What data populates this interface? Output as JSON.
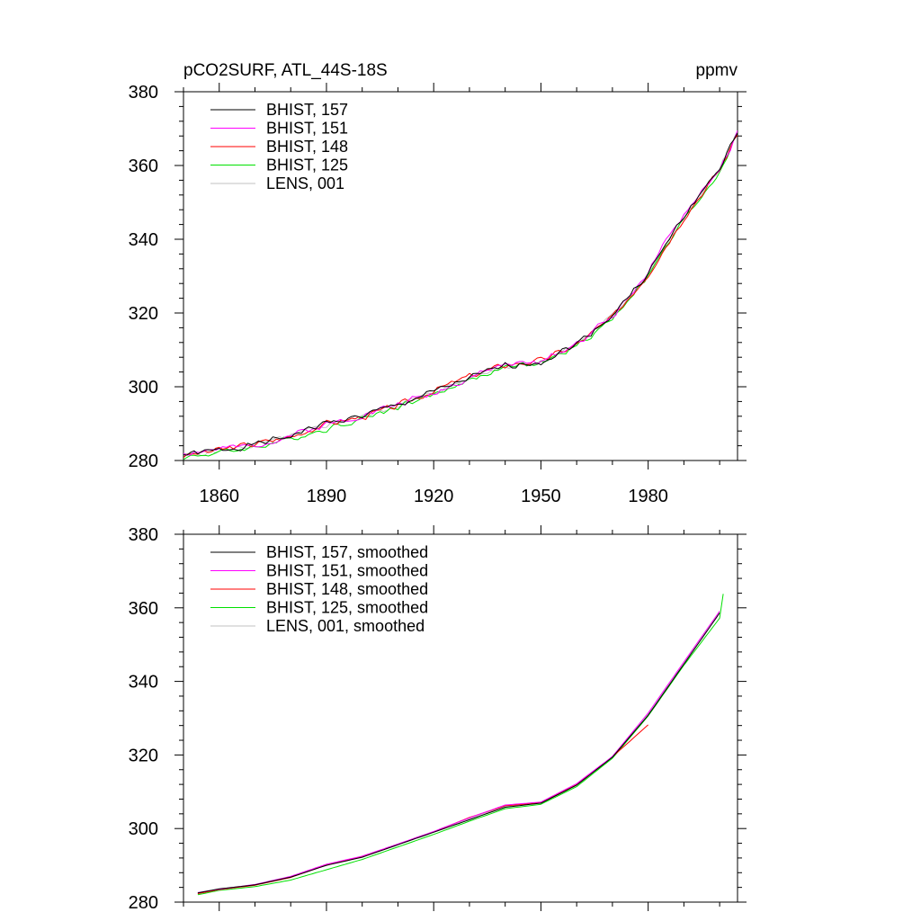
{
  "chart_data": [
    {
      "type": "line",
      "title_left": "pCO2SURF, ATL_44S-18S",
      "title_right": "ppmv",
      "xlim": [
        1850,
        2005
      ],
      "ylim": [
        280,
        380
      ],
      "xticks": [
        1860,
        1890,
        1920,
        1950,
        1980
      ],
      "yticks": [
        280,
        300,
        320,
        340,
        360,
        380
      ],
      "show_x_tick_labels": true,
      "legend_position": "top-left",
      "series": [
        {
          "name": "BHIST, 157",
          "color": "#000000",
          "noise": 1.1,
          "seed": 1,
          "x": [
            1850,
            1860,
            1870,
            1880,
            1890,
            1900,
            1910,
            1920,
            1930,
            1940,
            1950,
            1960,
            1970,
            1980,
            1990,
            2000,
            2005
          ],
          "y": [
            281.5,
            282.8,
            284.3,
            286.7,
            290.2,
            292.1,
            295.1,
            298.6,
            302.3,
            305.7,
            306.8,
            311.6,
            319.4,
            330.8,
            346.2,
            359.4,
            368.8
          ]
        },
        {
          "name": "BHIST, 151",
          "color": "#ff00ff",
          "noise": 1.1,
          "seed": 2,
          "x": [
            1850,
            1860,
            1870,
            1880,
            1890,
            1900,
            1910,
            1920,
            1930,
            1940,
            1950,
            1960,
            1970,
            1980,
            1990,
            2000,
            2005
          ],
          "y": [
            282.0,
            283.1,
            284.0,
            286.9,
            289.8,
            292.3,
            295.4,
            298.2,
            302.6,
            306.2,
            306.6,
            311.9,
            319.1,
            331.2,
            346.8,
            359.0,
            368.6
          ]
        },
        {
          "name": "BHIST, 148",
          "color": "#ff0000",
          "noise": 1.1,
          "seed": 3,
          "x": [
            1850,
            1860,
            1870,
            1880,
            1890,
            1900,
            1910,
            1920,
            1930,
            1940,
            1950,
            1960,
            1970,
            1980,
            1990,
            2000,
            2005
          ],
          "y": [
            281.2,
            282.9,
            284.6,
            286.4,
            290.0,
            291.8,
            294.9,
            298.9,
            302.9,
            305.9,
            307.1,
            311.4,
            318.8,
            330.5,
            345.9,
            358.8,
            368.7
          ]
        },
        {
          "name": "BHIST, 125",
          "color": "#00e000",
          "noise": 1.0,
          "seed": 4,
          "x": [
            1850,
            1860,
            1870,
            1880,
            1890,
            1900,
            1910,
            1920,
            1930,
            1940,
            1950,
            1960,
            1970,
            1980,
            1990,
            2000,
            2005
          ],
          "y": [
            280.8,
            282.2,
            283.6,
            285.9,
            288.6,
            291.4,
            294.6,
            297.9,
            301.9,
            305.2,
            306.3,
            310.9,
            318.5,
            330.2,
            345.3,
            358.3,
            368.9
          ]
        },
        {
          "name": "LENS, 001",
          "color": "#c0c0c0",
          "noise": 1.0,
          "seed": 5,
          "x": [
            1850,
            1860,
            1870,
            1880,
            1890,
            1900,
            1910,
            1920,
            1930,
            1940,
            1950,
            1960,
            1970,
            1980,
            1990,
            2000,
            2005
          ],
          "y": [
            281.4,
            282.6,
            284.1,
            286.5,
            289.7,
            292.0,
            295.0,
            298.4,
            302.4,
            305.6,
            306.7,
            311.5,
            319.2,
            330.7,
            346.0,
            359.1,
            368.7
          ]
        }
      ]
    },
    {
      "type": "line",
      "title_left": "",
      "title_right": "",
      "xlim": [
        1850,
        2005
      ],
      "ylim": [
        280,
        380
      ],
      "xticks": [
        1860,
        1890,
        1920,
        1950,
        1980
      ],
      "yticks": [
        280,
        300,
        320,
        340,
        360,
        380
      ],
      "show_x_tick_labels": false,
      "legend_position": "top-left",
      "series": [
        {
          "name": "BHIST, 157, smoothed",
          "color": "#000000",
          "noise": 0,
          "seed": 6,
          "x": [
            1854,
            1860,
            1870,
            1880,
            1890,
            1900,
            1910,
            1920,
            1930,
            1940,
            1950,
            1960,
            1970,
            1980,
            1990,
            2000
          ],
          "y": [
            282.5,
            283.6,
            284.7,
            286.8,
            290.0,
            292.2,
            295.6,
            299.0,
            302.4,
            305.8,
            306.9,
            311.8,
            319.4,
            330.8,
            344.7,
            358.6
          ]
        },
        {
          "name": "BHIST, 151, smoothed",
          "color": "#ff00ff",
          "noise": 0,
          "seed": 7,
          "x": [
            1854,
            1860,
            1870,
            1880,
            1890,
            1900,
            1910,
            1920,
            1930,
            1940,
            1950,
            1960,
            1970,
            1980,
            1990,
            2000
          ],
          "y": [
            282.6,
            283.5,
            284.8,
            287.0,
            290.3,
            292.5,
            295.8,
            299.2,
            302.9,
            306.4,
            307.2,
            312.2,
            319.6,
            331.4,
            345.3,
            359.1
          ]
        },
        {
          "name": "BHIST, 148, smoothed",
          "color": "#ff0000",
          "noise": 0,
          "seed": 8,
          "x": [
            1854,
            1860,
            1870,
            1880,
            1890,
            1900,
            1910,
            1920,
            1930,
            1940,
            1950,
            1960,
            1970,
            1980
          ],
          "y": [
            282.3,
            283.4,
            284.6,
            286.7,
            290.1,
            292.4,
            295.7,
            299.1,
            303.0,
            306.2,
            307.0,
            311.9,
            319.5,
            328.2
          ]
        },
        {
          "name": "BHIST, 125, smoothed",
          "color": "#00e000",
          "noise": 0,
          "seed": 9,
          "x": [
            1854,
            1860,
            1870,
            1880,
            1890,
            1900,
            1910,
            1920,
            1930,
            1940,
            1950,
            1960,
            1970,
            1980,
            1990,
            2000,
            2001
          ],
          "y": [
            282.0,
            283.2,
            284.2,
            286.0,
            288.8,
            291.6,
            295.0,
            298.4,
            302.0,
            305.4,
            306.6,
            311.4,
            319.1,
            330.6,
            344.4,
            357.2,
            363.8
          ]
        },
        {
          "name": "LENS, 001, smoothed",
          "color": "#c0c0c0",
          "noise": 0,
          "seed": 10,
          "x": [
            1854,
            1860,
            1870,
            1880,
            1890,
            1900,
            1910,
            1920,
            1930,
            1940,
            1950,
            1960,
            1970,
            1980,
            1990,
            2000
          ],
          "y": [
            282.4,
            283.5,
            284.6,
            286.8,
            290.1,
            292.3,
            295.6,
            299.0,
            302.6,
            306.0,
            307.0,
            311.9,
            319.4,
            330.9,
            344.9,
            358.7
          ]
        }
      ]
    }
  ]
}
